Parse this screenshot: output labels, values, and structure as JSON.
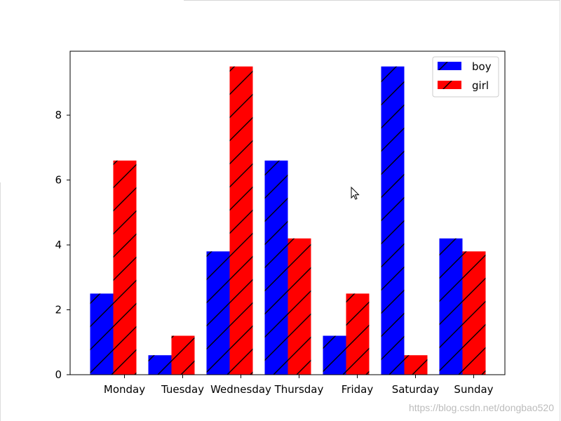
{
  "chart_data": {
    "type": "bar",
    "title": "",
    "xlabel": "",
    "ylabel": "",
    "categories": [
      "Monday",
      "Tuesday",
      "Wednesday",
      "Thursday",
      "Friday",
      "Saturday",
      "Sunday"
    ],
    "series": [
      {
        "name": "boy",
        "color": "#0000ff",
        "values": [
          2.5,
          0.6,
          3.8,
          6.6,
          1.2,
          9.5,
          4.2
        ]
      },
      {
        "name": "girl",
        "color": "#ff0000",
        "values": [
          6.6,
          1.2,
          9.5,
          4.2,
          2.5,
          0.6,
          3.8
        ]
      }
    ],
    "hatch": "/",
    "yticks": [
      0,
      2,
      4,
      6,
      8
    ],
    "ylim": [
      0,
      9.97
    ],
    "grid": false,
    "legend_position": "top-right"
  },
  "watermark": "https://blog.csdn.net/dongbao520"
}
